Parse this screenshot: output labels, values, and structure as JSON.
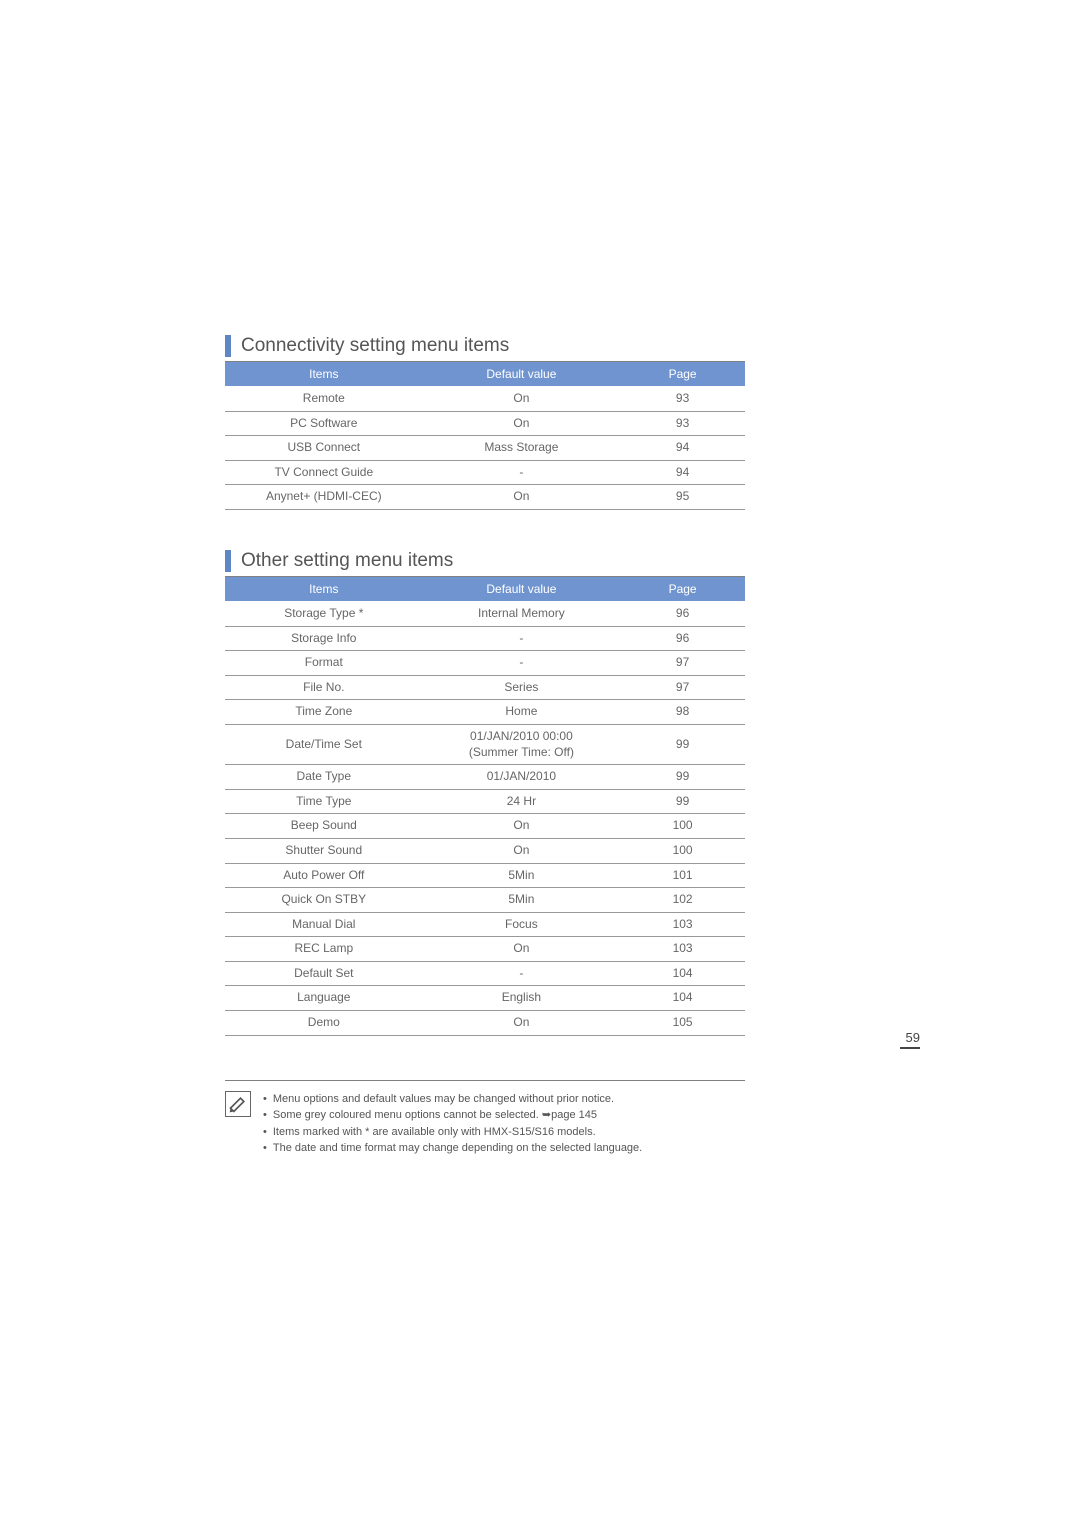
{
  "page_number": "59",
  "colors": {
    "header_bg": "#6f94cf",
    "header_text": "#ffffff",
    "heading_bar": "#5f86c5",
    "heading_text": "#555555",
    "cell_text": "#666666",
    "border": "#999999"
  },
  "section1": {
    "title": "Connectivity setting menu items",
    "columns": [
      "Items",
      "Default value",
      "Page"
    ],
    "rows": [
      [
        "Remote",
        "On",
        "93"
      ],
      [
        "PC Software",
        "On",
        "93"
      ],
      [
        "USB Connect",
        "Mass Storage",
        "94"
      ],
      [
        "TV Connect Guide",
        "-",
        "94"
      ],
      [
        "Anynet+ (HDMI-CEC)",
        "On",
        "95"
      ]
    ]
  },
  "section2": {
    "title": "Other setting menu items",
    "columns": [
      "Items",
      "Default value",
      "Page"
    ],
    "rows": [
      [
        "Storage Type *",
        "Internal Memory",
        "96"
      ],
      [
        "Storage Info",
        "-",
        "96"
      ],
      [
        "Format",
        "-",
        "97"
      ],
      [
        "File No.",
        "Series",
        "97"
      ],
      [
        "Time Zone",
        "Home",
        "98"
      ],
      [
        "Date/Time Set",
        "01/JAN/2010 00:00\n(Summer Time: Off)",
        "99"
      ],
      [
        "Date Type",
        "01/JAN/2010",
        "99"
      ],
      [
        "Time Type",
        "24 Hr",
        "99"
      ],
      [
        "Beep Sound",
        "On",
        "100"
      ],
      [
        "Shutter Sound",
        "On",
        "100"
      ],
      [
        "Auto Power Off",
        "5Min",
        "101"
      ],
      [
        "Quick On STBY",
        "5Min",
        "102"
      ],
      [
        "Manual Dial",
        "Focus",
        "103"
      ],
      [
        "REC Lamp",
        "On",
        "103"
      ],
      [
        "Default Set",
        "-",
        "104"
      ],
      [
        "Language",
        "English",
        "104"
      ],
      [
        "Demo",
        "On",
        "105"
      ]
    ]
  },
  "footnotes": {
    "items": [
      "Menu options and default values may be changed without prior notice.",
      "Some grey coloured menu options cannot be selected. ➥page 145",
      "Items marked with * are available only with HMX-S15/S16 models.",
      "The date and time format may change depending on the selected language."
    ]
  }
}
